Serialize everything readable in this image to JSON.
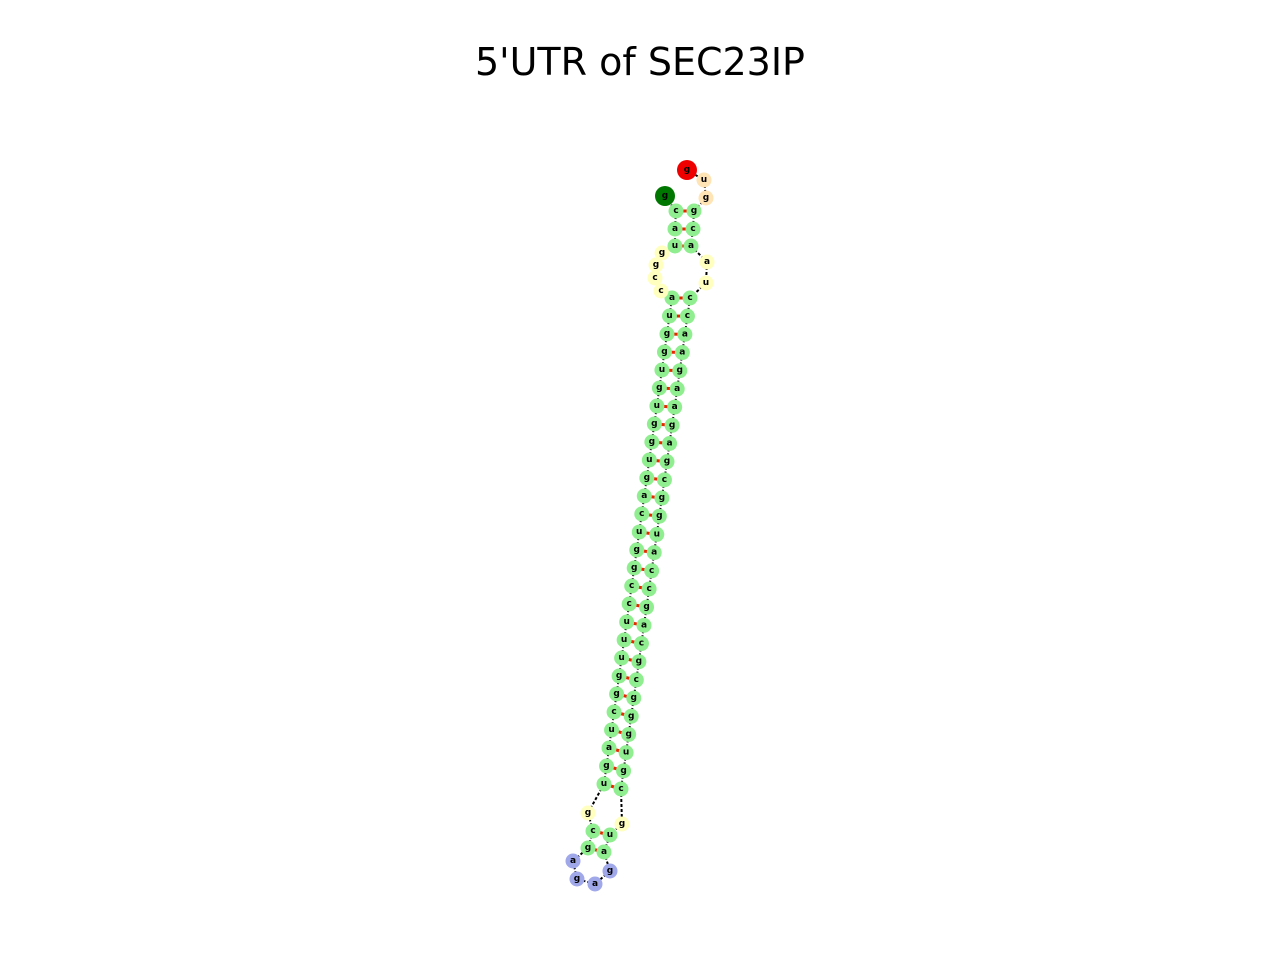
{
  "title": "5'UTR of SEC23IP",
  "colors": {
    "five_prime_end": "#ee0000",
    "three_prime_end": "#007700",
    "stem": "#90ee90",
    "interior_loop": "#ffffc0",
    "hairpin_loop": "#a0a8ea",
    "bulge": "#ffe4b5",
    "backbone": "#000000",
    "base_pair": "#ee2200"
  },
  "diagram": {
    "type": "rna_secondary_structure",
    "strand_left": [
      "g",
      "c",
      "g",
      "u",
      "g",
      "a",
      "u",
      "c",
      "g",
      "g",
      "u",
      "u",
      "u",
      "c",
      "c",
      "g",
      "g",
      "u",
      "c",
      "a",
      "g",
      "u",
      "g",
      "g",
      "u",
      "g",
      "u",
      "g",
      "g",
      "u",
      "a",
      "c",
      "c",
      "g",
      "g",
      "u",
      "a",
      "c",
      "c",
      "g",
      "g"
    ],
    "strand_right": [
      "g",
      "u",
      "g",
      "g",
      "c",
      "a",
      "a",
      "u",
      "c",
      "c",
      "a",
      "a",
      "g",
      "a",
      "a",
      "g",
      "a",
      "g",
      "c",
      "g",
      "g",
      "u",
      "a",
      "c",
      "c",
      "g",
      "a",
      "c",
      "g",
      "c",
      "g",
      "g",
      "g",
      "u",
      "g",
      "c",
      "g",
      "u",
      "a",
      "u",
      "g",
      "u",
      "c"
    ],
    "hairpin_loop": [
      "g",
      "a",
      "g",
      "a"
    ],
    "base_pairs": 31
  }
}
